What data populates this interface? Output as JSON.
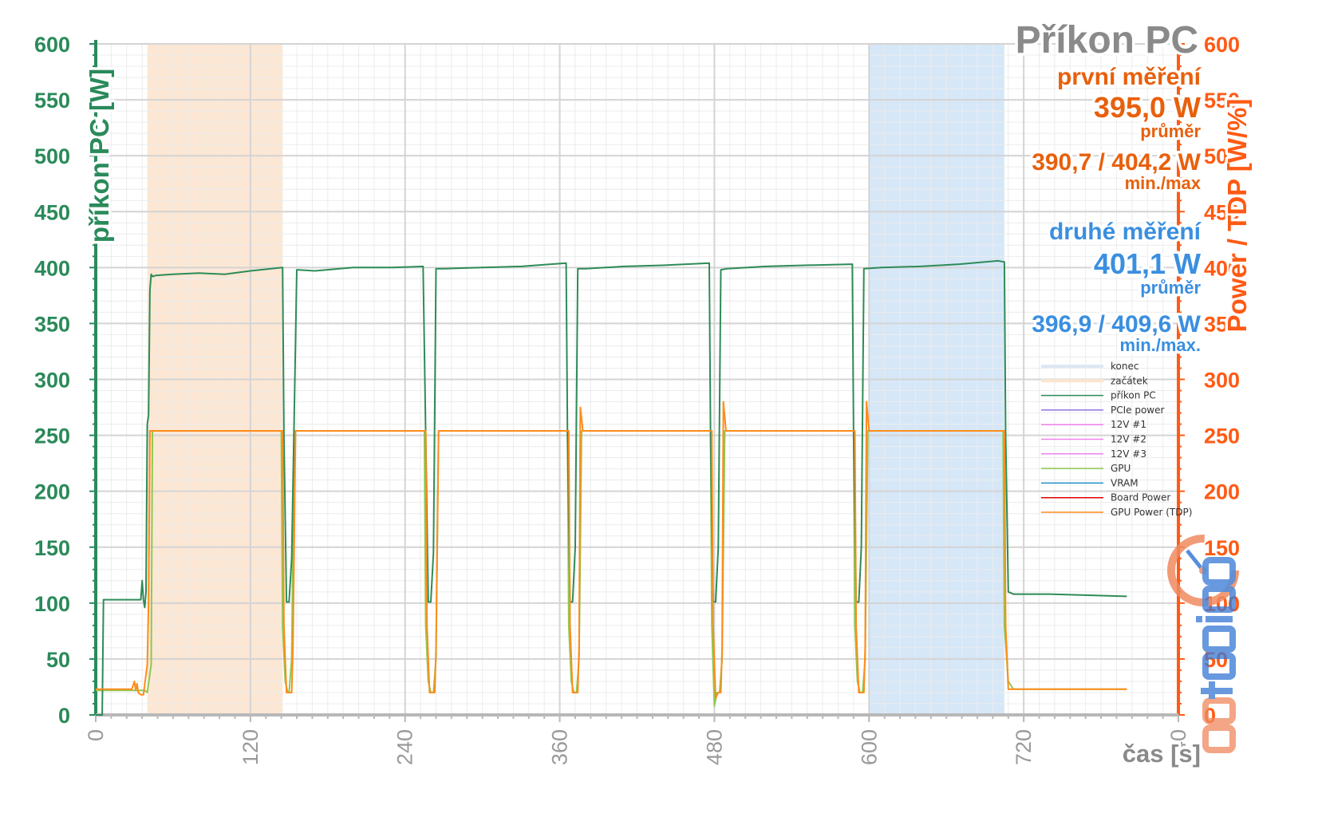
{
  "chart_data": {
    "type": "line",
    "title": "Příkon PC",
    "xlabel": "čas [s]",
    "ylabel_left": "příkon PC [W]",
    "ylabel_right": "Power / TDP [W/%]",
    "xlim": [
      0,
      840
    ],
    "ylim_left": [
      0,
      600
    ],
    "ylim_right": [
      0,
      600
    ],
    "x_ticks": [
      0,
      120,
      240,
      360,
      480,
      600,
      720,
      840
    ],
    "y_ticks": [
      0,
      50,
      100,
      150,
      200,
      250,
      300,
      350,
      400,
      450,
      500,
      550,
      600
    ],
    "grid": true,
    "legend_position": "right-middle",
    "colors": {
      "left_axis": "#2a8a5a",
      "right_axis": "#ff5a14",
      "first_measurement": "#e8600c",
      "second_measurement": "#3a8fe0",
      "begin_band": "#fbe3cc",
      "end_band": "#cfe3f7",
      "pc_power": "#2e8b57",
      "gpu": "#8fc850",
      "gpu_power_tdp": "#ff8c1a"
    },
    "bands": [
      {
        "name": "začátek",
        "x_start": 40,
        "x_end": 145
      },
      {
        "name": "konec",
        "x_start": 600,
        "x_end": 705
      }
    ],
    "annotations": {
      "first": {
        "label": "první měření",
        "avg": "395,0 W",
        "avg_label": "průměr",
        "minmax": "390,7 / 404,2 W",
        "minmax_label": "min./max"
      },
      "second": {
        "label": "druhé měření",
        "avg": "401,1 W",
        "avg_label": "průměr",
        "minmax": "396,9 / 409,6 W",
        "minmax_label": "min./max."
      }
    },
    "legend": [
      {
        "name": "konec",
        "color": "#dde8f4"
      },
      {
        "name": "začátek",
        "color": "#fbe6d2"
      },
      {
        "name": "příkon PC",
        "color": "#2e8b57"
      },
      {
        "name": "PCIe power",
        "color": "#9370db"
      },
      {
        "name": "12V #1",
        "color": "#ee82ee"
      },
      {
        "name": "12V #2",
        "color": "#ee82ee"
      },
      {
        "name": "12V #3",
        "color": "#ee82ee"
      },
      {
        "name": "GPU",
        "color": "#8fc850"
      },
      {
        "name": "VRAM",
        "color": "#1e90c8"
      },
      {
        "name": "Board Power",
        "color": "#e00000"
      },
      {
        "name": "GPU Power (TDP)",
        "color": "#ff8c1a"
      }
    ],
    "series": [
      {
        "name": "příkon PC",
        "axis": "left",
        "x": [
          0,
          5,
          6,
          7,
          35,
          36,
          37,
          38,
          39,
          40,
          41,
          42,
          43,
          44,
          47,
          60,
          80,
          100,
          120,
          145,
          146,
          148,
          150,
          152,
          156,
          170,
          200,
          230,
          254,
          256,
          258,
          260,
          262,
          264,
          270,
          300,
          330,
          365,
          366,
          368,
          370,
          372,
          374,
          380,
          410,
          440,
          476,
          477,
          479,
          481,
          483,
          485,
          490,
          520,
          550,
          587,
          588,
          590,
          592,
          594,
          596,
          610,
          640,
          670,
          700,
          705,
          706,
          708,
          712,
          740,
          770,
          800
        ],
        "y": [
          0,
          0,
          103,
          103,
          103,
          120,
          103,
          96,
          110,
          260,
          268,
          380,
          394,
          392,
          393,
          394,
          395,
          394,
          397,
          400,
          250,
          101,
          101,
          140,
          398,
          397,
          400,
          400,
          401,
          250,
          101,
          101,
          145,
          399,
          399,
          400,
          401,
          404,
          250,
          101,
          101,
          150,
          399,
          399,
          401,
          402,
          404,
          250,
          101,
          101,
          150,
          398,
          399,
          401,
          402,
          403,
          250,
          101,
          101,
          150,
          399,
          400,
          401,
          403,
          406,
          405,
          250,
          110,
          108,
          108,
          107,
          106
        ]
      },
      {
        "name": "GPU",
        "axis": "right",
        "x": [
          0,
          38,
          40,
          43,
          44,
          46,
          60,
          100,
          144,
          145,
          147,
          149,
          150,
          152,
          154,
          200,
          255,
          256,
          258,
          260,
          262,
          264,
          266,
          320,
          366,
          367,
          369,
          371,
          373,
          375,
          377,
          430,
          477,
          478,
          480,
          482,
          484,
          486,
          488,
          540,
          588,
          589,
          591,
          593,
          595,
          597,
          599,
          650,
          704,
          705,
          708,
          712,
          760,
          800
        ],
        "y": [
          22,
          22,
          20,
          45,
          254,
          254,
          254,
          254,
          254,
          80,
          30,
          20,
          20,
          50,
          254,
          254,
          254,
          80,
          30,
          20,
          20,
          50,
          254,
          254,
          254,
          80,
          30,
          20,
          20,
          50,
          254,
          254,
          254,
          80,
          8,
          20,
          20,
          50,
          254,
          254,
          254,
          80,
          30,
          20,
          20,
          50,
          254,
          254,
          254,
          80,
          30,
          23,
          23,
          23
        ]
      },
      {
        "name": "GPU Power (TDP)",
        "axis": "right",
        "x": [
          0,
          28,
          30,
          31,
          32,
          33,
          35,
          37,
          40,
          41,
          42,
          44,
          60,
          100,
          145,
          146,
          148,
          150,
          152,
          153,
          155,
          200,
          256,
          257,
          259,
          261,
          263,
          264,
          266,
          320,
          367,
          368,
          370,
          372,
          374,
          375,
          376,
          378,
          430,
          478,
          479,
          481,
          483,
          485,
          486,
          487,
          489,
          540,
          589,
          590,
          592,
          594,
          596,
          597,
          598,
          600,
          650,
          705,
          706,
          708,
          712,
          760,
          800
        ],
        "y": [
          23,
          23,
          30,
          22,
          28,
          20,
          18,
          18,
          45,
          100,
          254,
          254,
          254,
          254,
          254,
          80,
          20,
          20,
          20,
          60,
          254,
          254,
          254,
          80,
          20,
          20,
          20,
          60,
          254,
          254,
          254,
          80,
          20,
          20,
          20,
          60,
          275,
          254,
          254,
          254,
          80,
          15,
          20,
          20,
          60,
          280,
          254,
          254,
          254,
          80,
          20,
          20,
          20,
          60,
          280,
          254,
          254,
          254,
          80,
          23,
          23,
          23,
          23
        ]
      }
    ]
  },
  "logo": {
    "text": "pctuning"
  }
}
